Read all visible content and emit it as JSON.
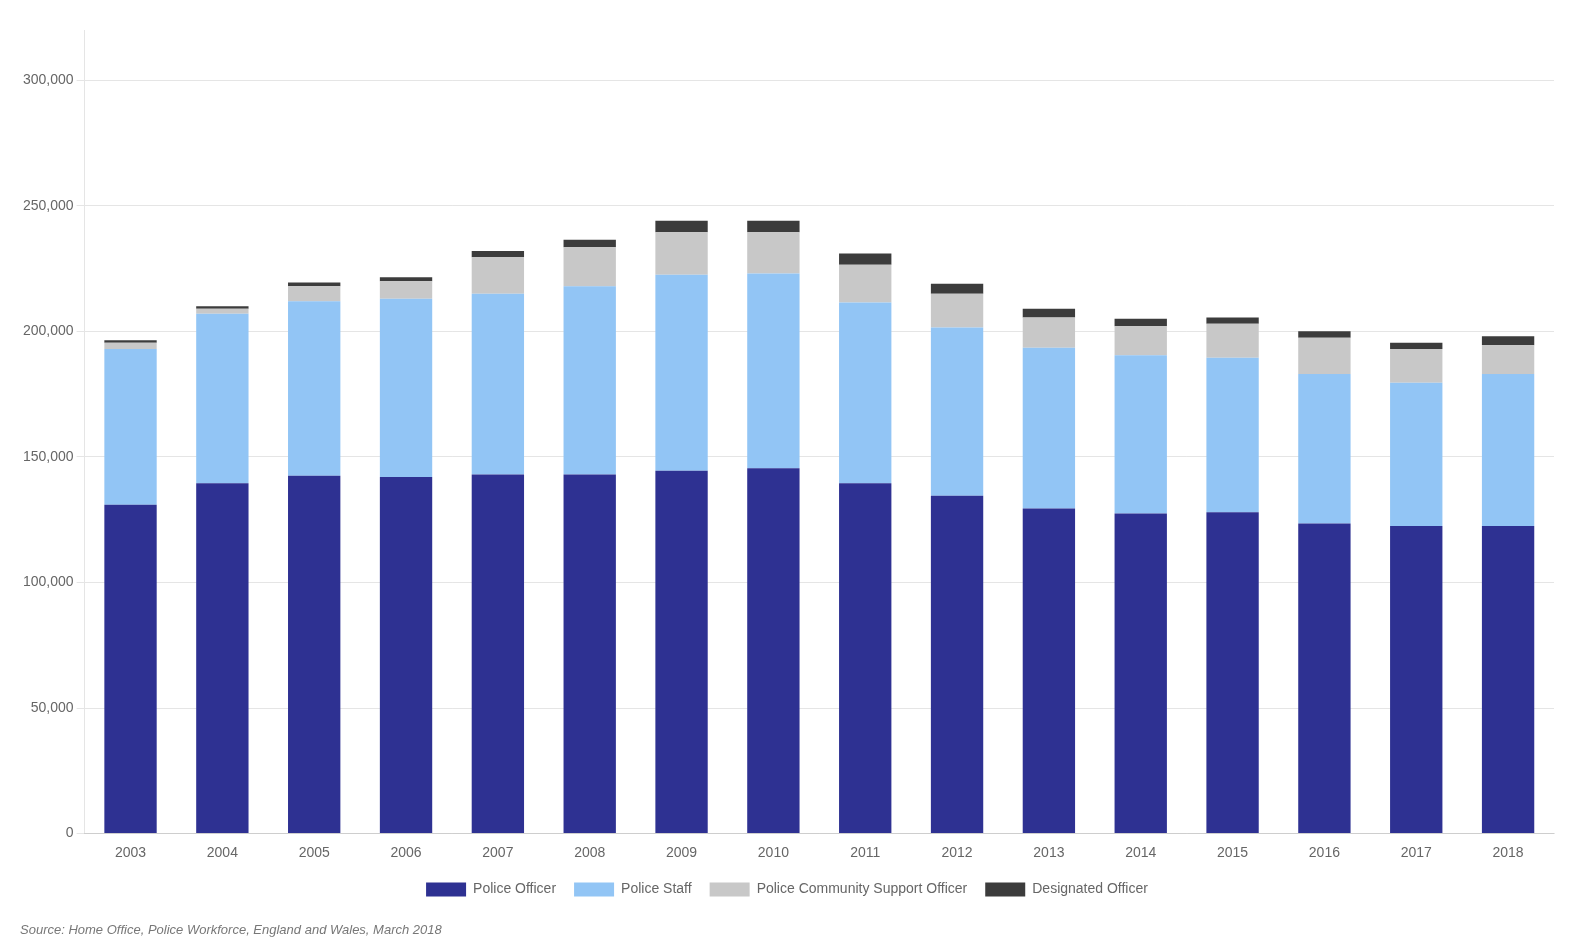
{
  "chart_data": {
    "type": "bar",
    "stacked": true,
    "grid": true,
    "legend": "bottom",
    "annotations": [
      "Source: Home Office, Police Workforce, England and Wales, March 2018"
    ],
    "categories": [
      "2003",
      "2004",
      "2005",
      "2006",
      "2007",
      "2008",
      "2009",
      "2010",
      "2011",
      "2012",
      "2013",
      "2014",
      "2015",
      "2016",
      "2017",
      "2018"
    ],
    "series": [
      {
        "name": "Police Officer",
        "color": "#2e3192",
        "values": [
          131000,
          139500,
          142500,
          142000,
          143000,
          143000,
          144500,
          145500,
          139500,
          134500,
          129500,
          127500,
          128000,
          123500,
          122500,
          122500
        ]
      },
      {
        "name": "Police Staff",
        "color": "#92c5f5",
        "values": [
          62000,
          67500,
          69500,
          71000,
          72000,
          75000,
          78000,
          77500,
          72000,
          67000,
          64000,
          63000,
          61500,
          59500,
          57000,
          60500
        ]
      },
      {
        "name": "Police Community Support Officer",
        "color": "#c8c8c8",
        "values": [
          2500,
          2000,
          6000,
          7000,
          14500,
          15500,
          17000,
          16500,
          15000,
          13500,
          12000,
          11500,
          13500,
          14500,
          13500,
          11500
        ]
      },
      {
        "name": "Designated Officer",
        "color": "#3c3c3c",
        "values": [
          1000,
          1000,
          1500,
          1500,
          2500,
          3000,
          4500,
          4500,
          4500,
          4000,
          3500,
          3000,
          2500,
          2500,
          2500,
          3500
        ]
      }
    ],
    "ylim": [
      0,
      320000
    ],
    "yticks": [
      0,
      {
        "value": 50000,
        "label": "50,000"
      },
      {
        "value": 100000,
        "label": "100,000"
      },
      {
        "value": 150000,
        "label": "150,000"
      },
      {
        "value": 200000,
        "label": "200,000"
      },
      {
        "value": 250000,
        "label": "250,000"
      },
      {
        "value": 300000,
        "label": "300,000"
      }
    ]
  }
}
